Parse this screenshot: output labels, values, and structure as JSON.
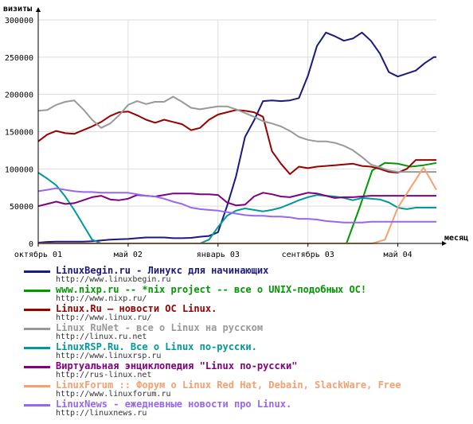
{
  "chart_data": {
    "type": "line",
    "ylabel": "визиты",
    "xlabel": "месяц",
    "ylim": [
      0,
      300000
    ],
    "yticks": [
      0,
      50000,
      100000,
      150000,
      200000,
      250000,
      300000
    ],
    "ytick_labels": [
      "0",
      "50000",
      "100000",
      "150000",
      "200000",
      "250000",
      "300000"
    ],
    "xlim": [
      0,
      31
    ],
    "xticks": [
      0,
      7,
      14,
      21,
      28
    ],
    "xtick_labels": [
      "октябрь 01",
      "май 02",
      "январь 03",
      "сентябрь 03",
      "май 04"
    ],
    "grid": true,
    "legend_position": "bottom",
    "series": [
      {
        "name": "LinuxBegin.ru - Линукс для начинающих",
        "url": "http://www.linuxbegin.ru",
        "color": "#1a1a80",
        "x": [
          0,
          0.7,
          1.4,
          2.1,
          2.8,
          3.5,
          4.2,
          4.9,
          5.6,
          6.3,
          7,
          7.7,
          8.4,
          9.1,
          9.8,
          10.5,
          11.2,
          11.9,
          12.6,
          13.3,
          14,
          14.7,
          15.4,
          16.1,
          16.8,
          17.5,
          18.2,
          18.9,
          19.6,
          20.3,
          21,
          21.7,
          22.4,
          23.1,
          23.8,
          24.5,
          25.2,
          25.9,
          26.6,
          27.3,
          28,
          28.7,
          29.4,
          30.1,
          30.8,
          31
        ],
        "y": [
          1000,
          2000,
          2500,
          2500,
          2500,
          2500,
          3000,
          4000,
          5000,
          5500,
          6000,
          7000,
          8000,
          8000,
          8000,
          7000,
          7000,
          7500,
          9000,
          10000,
          15000,
          50000,
          90000,
          143000,
          165000,
          191000,
          192000,
          191000,
          192000,
          195000,
          225000,
          265000,
          283000,
          278000,
          272000,
          275000,
          283000,
          272000,
          255000,
          230000,
          224000,
          228000,
          232000,
          242000,
          250000,
          250000
        ]
      },
      {
        "name": "www.nixp.ru -- *nix project -- все о UNIX-подобных ОС!",
        "url": "http://www.nixp.ru/",
        "color": "#009900",
        "x": [
          0,
          2,
          4,
          6,
          8,
          10,
          12,
          14,
          16,
          18,
          20,
          21,
          22,
          23,
          24,
          25,
          26,
          27,
          28,
          29,
          30,
          31
        ],
        "y": [
          0,
          0,
          0,
          0,
          0,
          0,
          0,
          0,
          0,
          0,
          0,
          0,
          0,
          0,
          0,
          47000,
          98000,
          108000,
          107000,
          103000,
          105000,
          108000
        ]
      },
      {
        "name": "Linux.Ru — новости ОС Linux.",
        "url": "http://www.linux.ru/",
        "color": "#990000",
        "x": [
          0,
          0.7,
          1.4,
          2.1,
          2.8,
          3.5,
          4.2,
          4.9,
          5.6,
          6.3,
          7,
          7.7,
          8.4,
          9.1,
          9.8,
          10.5,
          11.2,
          11.9,
          12.6,
          13.3,
          14,
          14.7,
          15.4,
          16.1,
          16.8,
          17.5,
          18.2,
          18.9,
          19.6,
          20.3,
          21,
          21.7,
          22.4,
          23.1,
          23.8,
          24.5,
          25.2,
          25.9,
          26.6,
          27.3,
          28,
          28.7,
          29.4,
          30.1,
          30.8,
          31
        ],
        "y": [
          137000,
          146000,
          151000,
          148000,
          147000,
          152000,
          157000,
          163000,
          171000,
          176000,
          177000,
          172000,
          166000,
          162000,
          166000,
          163000,
          160000,
          152000,
          155000,
          166000,
          173000,
          176000,
          179000,
          178000,
          176000,
          170000,
          124000,
          107000,
          93000,
          103000,
          101000,
          103000,
          104000,
          105000,
          106000,
          107000,
          104000,
          103000,
          100000,
          96000,
          95000,
          100000,
          112000,
          112000,
          112000,
          112000
        ]
      },
      {
        "name": "Linux RuNet - все о Linux на русском",
        "url": "http://linux.ru.net",
        "color": "#999999",
        "x": [
          0,
          0.7,
          1.4,
          2.1,
          2.8,
          3.5,
          4.2,
          4.9,
          5.6,
          6.3,
          7,
          7.7,
          8.4,
          9.1,
          9.8,
          10.5,
          11.2,
          11.9,
          12.6,
          13.3,
          14,
          14.7,
          15.4,
          16.1,
          16.8,
          17.5,
          18.2,
          18.9,
          19.6,
          20.3,
          21,
          21.7,
          22.4,
          23.1,
          23.8,
          24.5,
          25.2,
          25.9,
          26.6,
          27.3,
          28,
          28.7,
          29.4,
          30.1,
          30.8,
          31
        ],
        "y": [
          178000,
          179000,
          186000,
          190000,
          192000,
          180000,
          166000,
          155000,
          161000,
          172000,
          186000,
          191000,
          187000,
          190000,
          190000,
          197000,
          190000,
          182000,
          180000,
          182000,
          184000,
          184000,
          180000,
          175000,
          170000,
          164000,
          161000,
          157000,
          151000,
          143000,
          139000,
          137000,
          137000,
          135000,
          131000,
          125000,
          116000,
          106000,
          102000,
          98000,
          96000,
          96000,
          96000,
          96000,
          96000,
          96000
        ]
      },
      {
        "name": "LinuxRSP.Ru. Все о Linux по-русски.",
        "url": "http://www.linuxrsp.ru",
        "color": "#009999",
        "x": [
          0,
          0.7,
          1.4,
          2.1,
          2.8,
          3.5,
          4.2,
          4.9,
          5.6,
          6.3,
          7,
          7.7,
          8.4,
          9.1,
          9.8,
          10.5,
          11.2,
          11.9,
          12.6,
          13.3,
          14,
          14.7,
          15.4,
          16.1,
          16.8,
          17.5,
          18.2,
          18.9,
          19.6,
          20.3,
          21,
          21.7,
          22.4,
          23.1,
          23.8,
          24.5,
          25.2,
          25.9,
          26.6,
          27.3,
          28,
          28.7,
          29.4,
          30.1,
          30.8,
          31
        ],
        "y": [
          95000,
          87000,
          78000,
          63000,
          45000,
          25000,
          5000,
          0,
          0,
          0,
          0,
          0,
          0,
          0,
          0,
          0,
          0,
          0,
          0,
          5000,
          22000,
          37000,
          44000,
          47000,
          45000,
          43000,
          45000,
          48000,
          53000,
          58000,
          62000,
          65000,
          64000,
          63000,
          61000,
          58000,
          61000,
          60000,
          59000,
          55000,
          48000,
          46000,
          48000,
          48000,
          48000,
          48000
        ]
      },
      {
        "name": "Виртуальная энциклопедия \"Linux по-русски\"",
        "url": "http://rus-linux.net",
        "color": "#800080",
        "x": [
          0,
          0.7,
          1.4,
          2.1,
          2.8,
          3.5,
          4.2,
          4.9,
          5.6,
          6.3,
          7,
          7.7,
          8.4,
          9.1,
          9.8,
          10.5,
          11.2,
          11.9,
          12.6,
          13.3,
          14,
          14.7,
          15.4,
          16.1,
          16.8,
          17.5,
          18.2,
          18.9,
          19.6,
          20.3,
          21,
          21.7,
          22.4,
          23.1,
          23.8,
          24.5,
          25.2,
          25.9,
          26.6,
          27.3,
          28,
          28.7,
          29.4,
          30.1,
          30.8,
          31
        ],
        "y": [
          50000,
          53000,
          56000,
          53000,
          54000,
          58000,
          62000,
          64000,
          59000,
          58000,
          60000,
          65000,
          64000,
          63000,
          65000,
          67000,
          67000,
          67000,
          66000,
          66000,
          65000,
          55000,
          51000,
          52000,
          63000,
          68000,
          66000,
          63000,
          62000,
          65000,
          68000,
          67000,
          64000,
          61000,
          62000,
          62000,
          63000,
          64000,
          64000,
          64000,
          64000,
          64000,
          64000,
          64000,
          64000,
          64000
        ]
      },
      {
        "name": "LinuxForum :: Форум о Linux Red Hat, Debain, SlackWare, Free",
        "url": "http://www.linuxforum.ru",
        "color": "#f4a070",
        "x": [
          0,
          2,
          4,
          6,
          8,
          10,
          12,
          14,
          16,
          18,
          20,
          22,
          24,
          25,
          26,
          27,
          28,
          29,
          30,
          31
        ],
        "y": [
          0,
          0,
          0,
          0,
          0,
          0,
          0,
          0,
          0,
          0,
          0,
          0,
          0,
          0,
          0,
          5000,
          48000,
          75000,
          102000,
          72000
        ]
      },
      {
        "name": "LinuxNews - ежедневные новости про Linux.",
        "url": "http://linuxnews.ru",
        "color": "#9966ee",
        "x": [
          0,
          0.7,
          1.4,
          2.1,
          2.8,
          3.5,
          4.2,
          4.9,
          5.6,
          6.3,
          7,
          7.7,
          8.4,
          9.1,
          9.8,
          10.5,
          11.2,
          11.9,
          12.6,
          13.3,
          14,
          14.7,
          15.4,
          16.1,
          16.8,
          17.5,
          18.2,
          18.9,
          19.6,
          20.3,
          21,
          21.7,
          22.4,
          23.1,
          23.8,
          24.5,
          25.2,
          25.9,
          26.6,
          27.3,
          28,
          28.7,
          29.4,
          30.1,
          30.8,
          31
        ],
        "y": [
          70000,
          72000,
          74000,
          72000,
          70000,
          69000,
          69000,
          68000,
          68000,
          68000,
          68000,
          66000,
          64000,
          63000,
          60000,
          56000,
          53000,
          48000,
          46000,
          45000,
          44000,
          42000,
          40000,
          38000,
          37000,
          37000,
          36000,
          36000,
          35000,
          33000,
          33000,
          32000,
          30000,
          29000,
          28000,
          28000,
          28000,
          29000,
          29000,
          29000,
          29000,
          29000,
          29000,
          29000,
          29000,
          29000
        ]
      }
    ]
  }
}
